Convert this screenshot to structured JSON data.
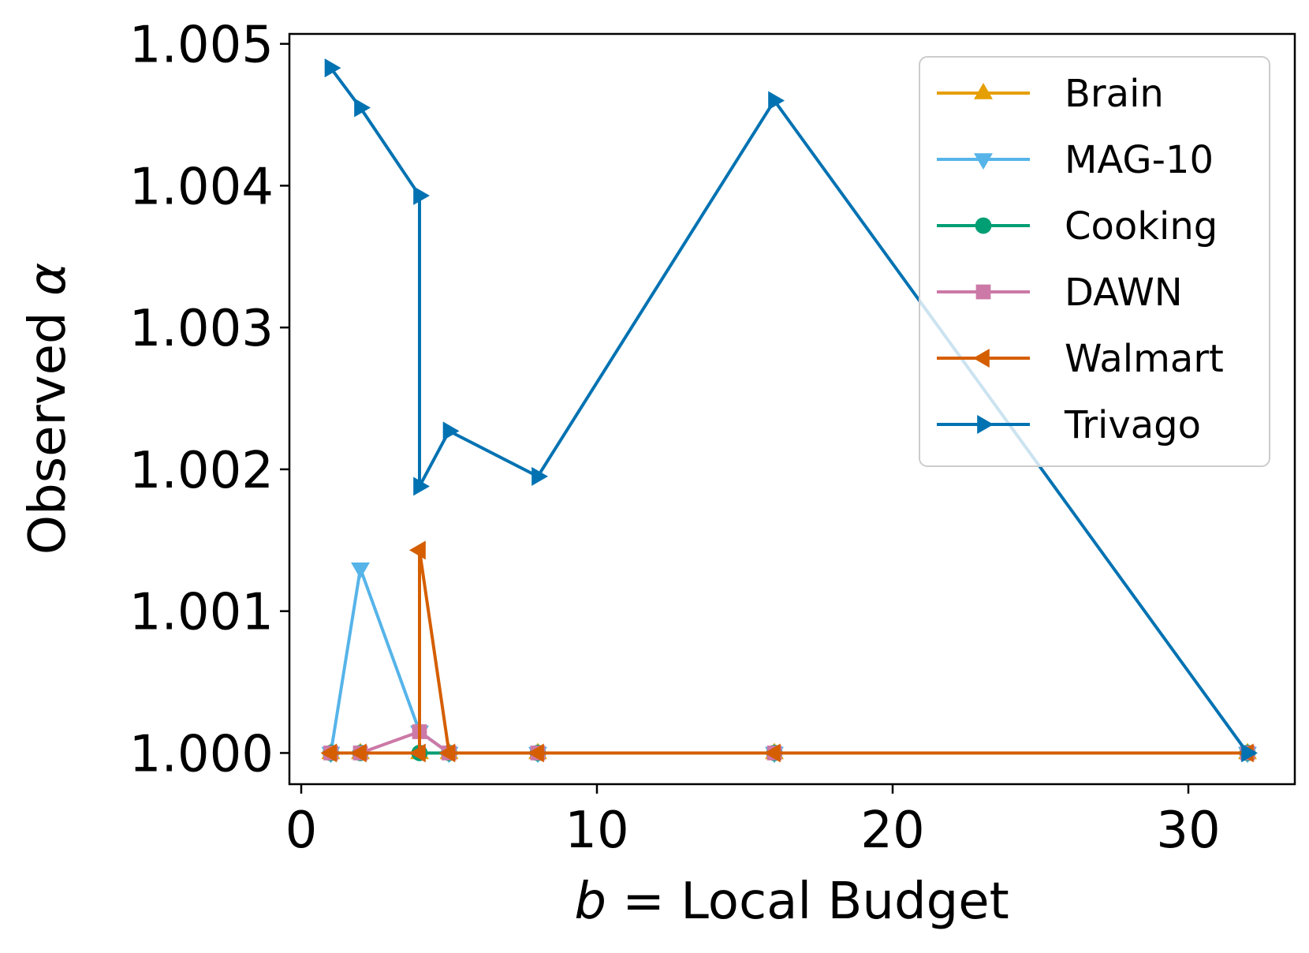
{
  "chart_data": {
    "type": "line",
    "xlabel_var": "b",
    "xlabel_rest": " = Local Budget",
    "ylabel_text": "Observed ",
    "ylabel_var": "α",
    "xlim": [
      -0.4,
      33.6
    ],
    "ylim": [
      0.99978,
      1.00507
    ],
    "x_ticks": [
      0,
      10,
      20,
      30
    ],
    "x_tick_labels": [
      "0",
      "10",
      "20",
      "30"
    ],
    "y_ticks": [
      1.0,
      1.001,
      1.002,
      1.003,
      1.004,
      1.005
    ],
    "y_tick_labels": [
      "1.000",
      "1.001",
      "1.002",
      "1.003",
      "1.004",
      "1.005"
    ],
    "grid": false,
    "legend_position": "top-right",
    "series": [
      {
        "name": "Brain",
        "color": "#E69F00",
        "marker": "triangle-up",
        "x": [
          1,
          2,
          4,
          5,
          8,
          16,
          32
        ],
        "y": [
          1.0,
          1.0,
          1.0,
          1.0,
          1.0,
          1.0,
          1.0
        ]
      },
      {
        "name": "MAG-10",
        "color": "#56B4E9",
        "marker": "triangle-down",
        "x": [
          1,
          2,
          4,
          5,
          8,
          16,
          32
        ],
        "y": [
          1.0,
          1.0013,
          1.00015,
          1.0,
          1.0,
          1.0,
          1.0
        ]
      },
      {
        "name": "Cooking",
        "color": "#009E73",
        "marker": "circle",
        "x": [
          1,
          2,
          4,
          5,
          8,
          16,
          32
        ],
        "y": [
          1.0,
          1.0,
          1.0,
          1.0,
          1.0,
          1.0,
          1.0
        ]
      },
      {
        "name": "DAWN",
        "color": "#CC79A7",
        "marker": "square",
        "x": [
          1,
          2,
          4,
          5,
          8,
          16,
          32
        ],
        "y": [
          1.0,
          1.0,
          1.00015,
          1.0,
          1.0,
          1.0,
          1.0
        ]
      },
      {
        "name": "Walmart",
        "color": "#D55E00",
        "marker": "triangle-left",
        "x": [
          1,
          2,
          4,
          4,
          5,
          8,
          16,
          32
        ],
        "y": [
          1.0,
          1.0,
          1.0,
          1.00143,
          1.0,
          1.0,
          1.0,
          1.0
        ]
      },
      {
        "name": "Trivago",
        "color": "#0072B2",
        "marker": "triangle-right",
        "x": [
          1,
          2,
          4,
          4,
          5,
          8,
          16,
          32
        ],
        "y": [
          1.00483,
          1.00455,
          1.00393,
          1.00188,
          1.00227,
          1.00195,
          1.0046,
          1.0
        ]
      }
    ]
  }
}
